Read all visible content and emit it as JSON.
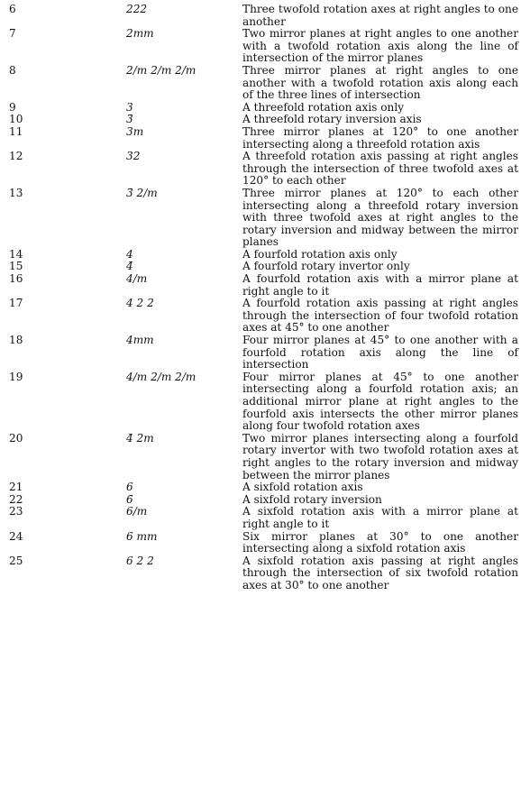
{
  "rows": [
    {
      "num": "6",
      "symbol": "222",
      "desc": "Three twofold rotation axes at right angles to one another"
    },
    {
      "num": "7",
      "symbol": "2mm",
      "desc": "Two mirror planes at right angles to one another with a twofold rotation axis along the line of intersection of the mirror planes"
    },
    {
      "num": "8",
      "symbol": "2/m 2/m 2/m",
      "desc": "Three mirror planes at right angles to one another with a twofold rotation axis along each of the three lines of intersection"
    },
    {
      "num": "9",
      "symbol": "3",
      "desc": "A threefold rotation axis only"
    },
    {
      "num": "10",
      "symbol": "3̄",
      "desc": "A threefold rotary inversion axis"
    },
    {
      "num": "11",
      "symbol": "3m",
      "desc": "Three mirror planes at 120° to one another intersecting along a threefold rotation axis"
    },
    {
      "num": "12",
      "symbol": "32",
      "desc": "A threefold rotation axis passing at right angles through the intersection of three twofold axes at 120° to each other"
    },
    {
      "num": "13",
      "symbol": "3̄ 2/m",
      "desc": "Three mirror planes at 120° to each other intersecting along a threefold rotary inversion with three twofold axes at right angles to the rotary inversion and midway between the mirror planes"
    },
    {
      "num": "14",
      "symbol": "4",
      "desc": "A fourfold rotation axis only"
    },
    {
      "num": "15",
      "symbol": "4̄",
      "desc": "A fourfold rotary invertor only"
    },
    {
      "num": "16",
      "symbol": "4/m",
      "desc": "A fourfold rotation axis with a mirror plane at right angle to it"
    },
    {
      "num": "17",
      "symbol": "4 2 2",
      "desc": "A fourfold rotation axis passing at right angles through the intersection of four twofold rotation axes at 45° to one another"
    },
    {
      "num": "18",
      "symbol": "4mm",
      "desc": "Four mirror planes at 45° to one another with a fourfold rotation axis along the line of intersection"
    },
    {
      "num": "19",
      "symbol": "4/m 2/m 2/m",
      "desc": "Four mirror planes at 45° to one another intersecting along a fourfold rotation axis; an additional mirror plane at right angles to the fourfold axis intersects the other mirror planes along four twofold rotation axes"
    },
    {
      "num": "20",
      "symbol": "4̄ 2m",
      "desc": "Two mirror planes intersecting along a fourfold rotary invertor with two twofold rotation axes at right angles to the rotary inversion and midway between the mirror planes"
    },
    {
      "num": "21",
      "symbol": "6",
      "desc": "A sixfold rotation axis"
    },
    {
      "num": "22",
      "symbol": "6̄",
      "desc": "A sixfold rotary inversion"
    },
    {
      "num": "23",
      "symbol": "6/m",
      "desc": "A sixfold rotation axis with a mirror plane at right angle to it"
    },
    {
      "num": "24",
      "symbol": "6 mm",
      "desc": "Six mirror planes at 30° to one another intersecting along a sixfold rotation axis"
    },
    {
      "num": "25",
      "symbol": "6 2 2",
      "desc": "A sixfold rotation axis passing at right angles through the intersection of six twofold rotation axes at 30° to one another"
    }
  ]
}
